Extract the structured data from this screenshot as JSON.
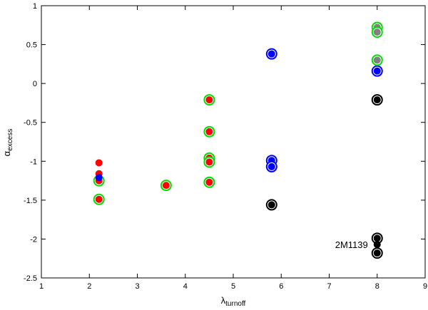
{
  "chart_data": {
    "type": "scatter",
    "title": "",
    "xlabel": {
      "main": "λ",
      "sub": "turnoff"
    },
    "ylabel": {
      "main": "α",
      "sub": "excess"
    },
    "xlim": [
      1,
      9
    ],
    "ylim": [
      -2.5,
      1
    ],
    "xticks": [
      1,
      2,
      3,
      4,
      5,
      6,
      7,
      8,
      9
    ],
    "yticks": [
      1,
      0.5,
      0,
      -0.5,
      -1,
      -1.5,
      -2,
      -2.5
    ],
    "xtick_labels": [
      "1",
      "2",
      "3",
      "4",
      "5",
      "6",
      "7",
      "8",
      "9"
    ],
    "ytick_labels": [
      "1",
      "0.5",
      "0",
      "-0.5",
      "-1",
      "-1.5",
      "-2",
      "-2.5"
    ],
    "grid": false,
    "annotations": [
      {
        "text": "2M1139",
        "x": 8,
        "y": -2.07
      }
    ],
    "series": [
      {
        "fill": "#ff0000",
        "ring": "#00dd00",
        "points": [
          [
            2.2,
            -1.25
          ],
          [
            2.2,
            -1.49
          ],
          [
            3.6,
            -1.31
          ],
          [
            4.5,
            -0.21
          ],
          [
            4.5,
            -0.62
          ],
          [
            4.5,
            -0.96
          ],
          [
            4.5,
            -1.01
          ],
          [
            4.5,
            -1.27
          ]
        ]
      },
      {
        "fill": "#ff0000",
        "ring": null,
        "points": [
          [
            2.2,
            -1.02
          ],
          [
            2.2,
            -1.16
          ]
        ]
      },
      {
        "fill": "#0000ff",
        "ring": null,
        "points": [
          [
            2.2,
            -1.21
          ]
        ]
      },
      {
        "fill": "#0000ff",
        "ring": "#0000ff",
        "points": [
          [
            5.8,
            0.38
          ],
          [
            5.8,
            -0.99
          ],
          [
            5.8,
            -1.07
          ],
          [
            8.0,
            0.16
          ]
        ]
      },
      {
        "fill": "#808080",
        "ring": "#00dd00",
        "points": [
          [
            8.0,
            0.72
          ],
          [
            8.0,
            0.66
          ],
          [
            8.0,
            0.3
          ]
        ]
      },
      {
        "fill": "#000000",
        "ring": "#000000",
        "points": [
          [
            8.0,
            -0.21
          ],
          [
            5.8,
            -1.56
          ],
          [
            8.0,
            -1.99
          ],
          [
            8.0,
            -2.18
          ]
        ]
      },
      {
        "fill": "#000000",
        "ring": null,
        "points": [
          [
            8.0,
            -2.07
          ]
        ]
      }
    ]
  }
}
